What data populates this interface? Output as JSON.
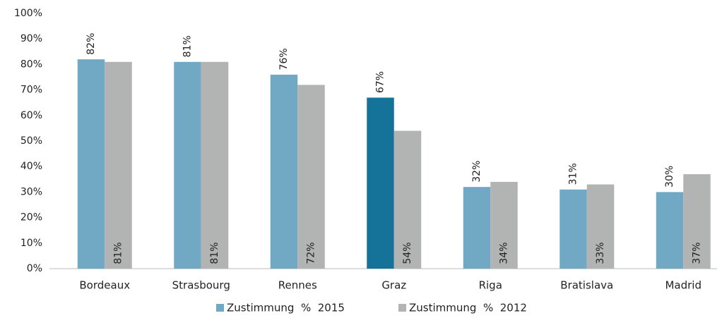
{
  "chart_data": {
    "type": "bar",
    "categories": [
      "Bordeaux",
      "Strasbourg",
      "Rennes",
      "Graz",
      "Riga",
      "Bratislava",
      "Madrid"
    ],
    "series": [
      {
        "name": "Zustimmung  %  2015",
        "color": "#71a9c5",
        "colors": [
          "#71a9c5",
          "#71a9c5",
          "#71a9c5",
          "#15739a",
          "#71a9c5",
          "#71a9c5",
          "#71a9c5"
        ],
        "values": [
          82,
          81,
          76,
          67,
          32,
          31,
          30
        ],
        "value_labels": [
          "82%",
          "81%",
          "76%",
          "67%",
          "32%",
          "31%",
          "30%"
        ]
      },
      {
        "name": "Zustimmung  %  2012",
        "color": "#b2b4b4",
        "values": [
          81,
          81,
          72,
          54,
          34,
          33,
          37
        ],
        "value_labels": [
          "81%",
          "81%",
          "72%",
          "54%",
          "34%",
          "33%",
          "37%"
        ]
      }
    ],
    "ylim": [
      0,
      100
    ],
    "yticks": [
      {
        "value": 0,
        "label": "0%"
      },
      {
        "value": 10,
        "label": "10%"
      },
      {
        "value": 20,
        "label": "20%"
      },
      {
        "value": 30,
        "label": "30%"
      },
      {
        "value": 40,
        "label": "40%"
      },
      {
        "value": 50,
        "label": "50%"
      },
      {
        "value": 60,
        "label": "60%"
      },
      {
        "value": 70,
        "label": "70%"
      },
      {
        "value": 80,
        "label": "80%"
      },
      {
        "value": 90,
        "label": "90%"
      },
      {
        "value": 100,
        "label": "100%"
      }
    ],
    "grid": false,
    "legend": "bottom"
  }
}
